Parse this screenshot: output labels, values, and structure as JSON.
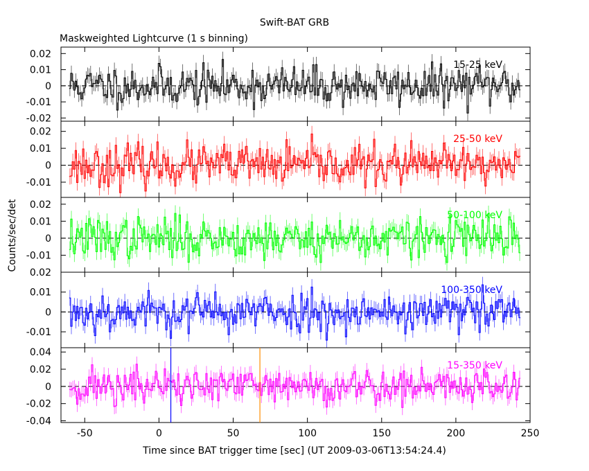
{
  "title": "Swift-BAT GRB",
  "subtitle": "Maskweighted Lightcurve (1 s binning)",
  "xlabel": "Time since BAT trigger time [sec] (UT 2009-03-06T13:54:24.4)",
  "ylabel": "Counts/sec/det",
  "chart_data": {
    "type": "line",
    "title": "Swift-BAT GRB",
    "subtitle": "Maskweighted Lightcurve (1 s binning)",
    "xlabel": "Time since BAT trigger time [sec] (UT 2009-03-06T13:54:24.4)",
    "ylabel": "Counts/sec/det",
    "x_range": [
      -60,
      243
    ],
    "bin_seconds": 1,
    "xlim": [
      -66,
      250
    ],
    "x_ticks": [
      -50,
      0,
      50,
      100,
      150,
      200,
      250
    ],
    "vertical_markers": [
      {
        "x": 8,
        "color": "#0000ff"
      },
      {
        "x": 68,
        "color": "#ff8c00"
      }
    ],
    "panels": [
      {
        "name": "15-25 keV",
        "color": "#000000",
        "ylim": [
          -0.022,
          0.024
        ],
        "yticks": [
          -0.02,
          -0.01,
          0,
          0.01,
          0.02
        ],
        "tick_labels": [
          "-0.02",
          "-0.01",
          "0",
          "0.01",
          "0.02"
        ],
        "noise_sigma": 0.006,
        "seed": 11
      },
      {
        "name": "25-50 keV",
        "color": "#ff0000",
        "ylim": [
          -0.019,
          0.026
        ],
        "yticks": [
          -0.01,
          0,
          0.01,
          0.02
        ],
        "tick_labels": [
          "-0.01",
          "0",
          "0.01",
          "0.02"
        ],
        "noise_sigma": 0.006,
        "seed": 23
      },
      {
        "name": "50-100 keV",
        "color": "#00ff00",
        "ylim": [
          -0.02,
          0.024
        ],
        "yticks": [
          -0.01,
          0,
          0.01,
          0.02
        ],
        "tick_labels": [
          "-0.01",
          "0",
          "0.01",
          "0.02"
        ],
        "noise_sigma": 0.006,
        "seed": 37
      },
      {
        "name": "100-350 keV",
        "color": "#0000ff",
        "ylim": [
          -0.018,
          0.02
        ],
        "yticks": [
          -0.01,
          0,
          0.01,
          0.02
        ],
        "tick_labels": [
          "-0.01",
          "0",
          "0.01",
          "0.02"
        ],
        "noise_sigma": 0.005,
        "seed": 53
      },
      {
        "name": "15-350 keV",
        "color": "#ff00ff",
        "ylim": [
          -0.042,
          0.045
        ],
        "yticks": [
          -0.04,
          -0.02,
          0,
          0.02,
          0.04
        ],
        "tick_labels": [
          "-0.04",
          "-0.02",
          "0",
          "0.02",
          "0.04"
        ],
        "noise_sigma": 0.011,
        "seed": 71
      }
    ],
    "grid": false,
    "legend": "per-panel label, top-right"
  }
}
